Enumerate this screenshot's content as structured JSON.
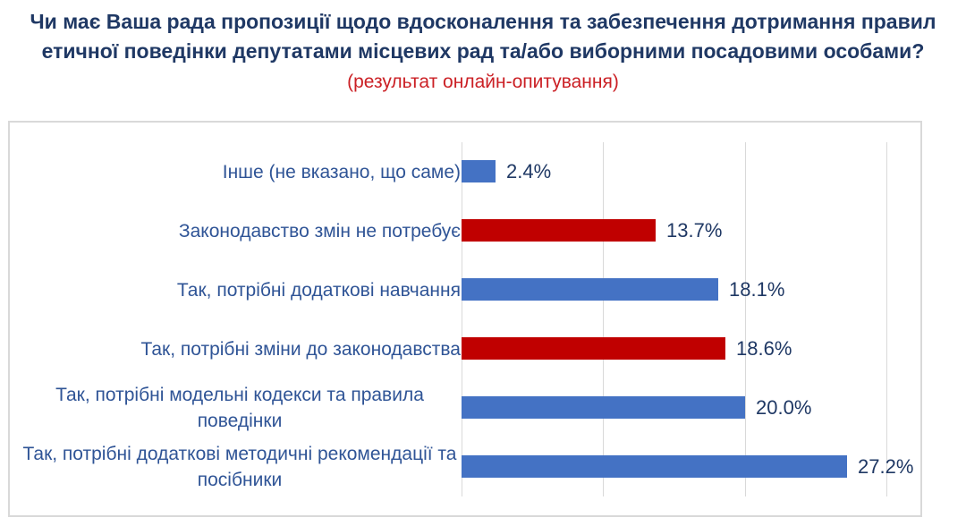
{
  "title": {
    "line1": "Чи має Ваша рада пропозиції щодо вдосконалення та забезпечення дотримання правил",
    "line2": "етичної поведінки депутатами місцевих рад та/або виборними посадовими особами?",
    "subtitle": "(результат онлайн-опитування)"
  },
  "colors": {
    "title_text": "#1F3864",
    "subtitle_text": "#CB2025",
    "bar_blue": "#4472C4",
    "bar_red": "#C00000",
    "category_label_text": "#2F5496",
    "value_label_text": "#1F3864",
    "gridline": "#D9D9D9",
    "chart_border": "#D9D9D9"
  },
  "chart_data": {
    "type": "bar",
    "orientation": "horizontal",
    "title": "Чи має Ваша рада пропозиції щодо вдосконалення та забезпечення дотримання правил етичної поведінки депутатами місцевих рад та/або виборними посадовими особами?",
    "subtitle": "(результат онлайн-опитування)",
    "categories": [
      "Інше (не вказано, що саме)",
      "Законодавство змін не потребує",
      "Так, потрібні додаткові навчання",
      "Так, потрібні зміни до законодавства",
      "Так, потрібні модельні кодекси та правила поведінки",
      "Так, потрібні додаткові методичні рекомендації та посібники"
    ],
    "values": [
      2.4,
      13.7,
      18.1,
      18.6,
      20.0,
      27.2
    ],
    "value_labels": [
      "2.4%",
      "13.7%",
      "18.1%",
      "18.6%",
      "20.0%",
      "27.2%"
    ],
    "bar_colors": [
      "#4472C4",
      "#C00000",
      "#4472C4",
      "#C00000",
      "#4472C4",
      "#4472C4"
    ],
    "xlim": [
      0,
      30
    ],
    "x_major_unit": 10,
    "gridlines_percent": [
      0,
      10,
      20,
      30
    ],
    "grid": true,
    "legend": false,
    "axis_tick_labels_visible": false
  }
}
